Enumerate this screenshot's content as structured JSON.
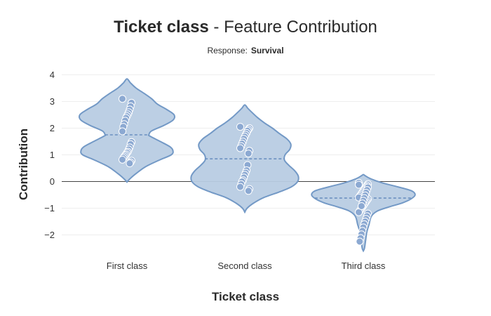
{
  "chart_data": {
    "type": "violin",
    "title_bold": "Ticket class",
    "title_rest": " - Feature Contribution",
    "subtitle_label": "Response:",
    "subtitle_value": "Survival",
    "xlabel": "Ticket class",
    "ylabel": "Contribution",
    "ylim": [
      -2.6,
      4.2
    ],
    "yticks": [
      -2,
      -1,
      0,
      1,
      2,
      3,
      4
    ],
    "ytick_labels": [
      "−2",
      "−1",
      "0",
      "1",
      "2",
      "3",
      "4"
    ],
    "categories": [
      "First class",
      "Second class",
      "Third class"
    ],
    "grid": true,
    "colors": {
      "fill": "#b8cce3",
      "stroke": "#7399c6",
      "point": "#8ca9d2",
      "median": "#6b90c0",
      "grid": "#eeeeee",
      "zero": "#444444"
    },
    "violins": [
      {
        "category": "First class",
        "median": 1.75,
        "profile": [
          [
            -0.02,
            0
          ],
          [
            0.1,
            0.05
          ],
          [
            0.3,
            0.16
          ],
          [
            0.55,
            0.32
          ],
          [
            0.8,
            0.56
          ],
          [
            1.0,
            0.77
          ],
          [
            1.15,
            0.8
          ],
          [
            1.3,
            0.75
          ],
          [
            1.5,
            0.58
          ],
          [
            1.7,
            0.4
          ],
          [
            1.75,
            0.38
          ],
          [
            1.9,
            0.43
          ],
          [
            2.1,
            0.64
          ],
          [
            2.3,
            0.8
          ],
          [
            2.5,
            0.82
          ],
          [
            2.7,
            0.69
          ],
          [
            2.9,
            0.53
          ],
          [
            3.1,
            0.43
          ],
          [
            3.3,
            0.3
          ],
          [
            3.5,
            0.16
          ],
          [
            3.7,
            0.06
          ],
          [
            3.85,
            0
          ]
        ],
        "points": [
          3.1,
          2.95,
          2.82,
          2.7,
          2.6,
          2.52,
          2.45,
          2.38,
          2.28,
          2.15,
          2.05,
          1.88,
          1.48,
          1.4,
          1.28,
          1.2,
          1.12,
          1.08,
          1.02,
          0.98,
          0.93,
          0.88,
          0.82,
          0.78,
          0.72,
          0.68
        ]
      },
      {
        "category": "Second class",
        "median": 0.85,
        "profile": [
          [
            -1.15,
            0
          ],
          [
            -1.0,
            0.04
          ],
          [
            -0.8,
            0.16
          ],
          [
            -0.6,
            0.33
          ],
          [
            -0.4,
            0.59
          ],
          [
            -0.2,
            0.81
          ],
          [
            0.0,
            0.92
          ],
          [
            0.2,
            0.93
          ],
          [
            0.4,
            0.87
          ],
          [
            0.6,
            0.77
          ],
          [
            0.8,
            0.69
          ],
          [
            1.0,
            0.7
          ],
          [
            1.2,
            0.78
          ],
          [
            1.4,
            0.8
          ],
          [
            1.6,
            0.73
          ],
          [
            1.8,
            0.6
          ],
          [
            2.0,
            0.48
          ],
          [
            2.2,
            0.34
          ],
          [
            2.4,
            0.22
          ],
          [
            2.6,
            0.12
          ],
          [
            2.75,
            0.05
          ],
          [
            2.87,
            0
          ]
        ],
        "points": [
          2.05,
          2.0,
          1.95,
          1.9,
          1.82,
          1.75,
          1.68,
          1.6,
          1.5,
          1.42,
          1.33,
          1.25,
          1.15,
          1.05,
          0.62,
          0.42,
          0.33,
          0.25,
          0.15,
          0.05,
          0.0,
          -0.1,
          -0.2,
          -0.28,
          -0.35
        ]
      },
      {
        "category": "Third class",
        "median": -0.62,
        "profile": [
          [
            -2.6,
            0
          ],
          [
            -2.5,
            0.02
          ],
          [
            -2.2,
            0.04
          ],
          [
            -1.9,
            0.06
          ],
          [
            -1.6,
            0.1
          ],
          [
            -1.3,
            0.14
          ],
          [
            -1.1,
            0.25
          ],
          [
            -0.95,
            0.45
          ],
          [
            -0.8,
            0.68
          ],
          [
            -0.65,
            0.83
          ],
          [
            -0.5,
            0.9
          ],
          [
            -0.35,
            0.84
          ],
          [
            -0.2,
            0.6
          ],
          [
            -0.05,
            0.33
          ],
          [
            0.1,
            0.13
          ],
          [
            0.22,
            0.03
          ],
          [
            0.26,
            0
          ]
        ],
        "points": [
          -0.05,
          -0.1,
          -0.15,
          -0.2,
          -0.25,
          -0.3,
          -0.35,
          -0.4,
          -0.45,
          -0.5,
          -0.55,
          -0.6,
          -0.65,
          -0.7,
          -0.75,
          -0.8,
          -0.85,
          -0.9,
          -0.95,
          -1.0,
          -1.05,
          -1.1,
          -1.15,
          -1.2,
          -1.3,
          -1.4,
          -1.5,
          -1.6,
          -1.72,
          -1.85,
          -1.98,
          -2.12,
          -2.25,
          -0.12,
          -0.22,
          -0.32,
          -0.42,
          -0.52,
          -0.62,
          -0.72,
          -0.82,
          -0.92
        ]
      }
    ]
  }
}
